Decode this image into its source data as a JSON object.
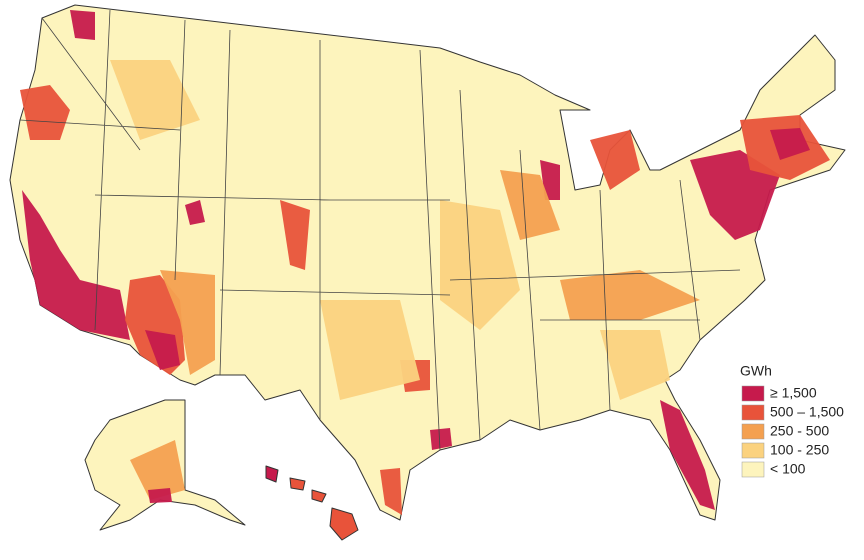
{
  "legend": {
    "title": "GWh",
    "items": [
      {
        "label": "≥ 1,500",
        "color": "#c61a4c"
      },
      {
        "label": "500 – 1,500",
        "color": "#e8533a"
      },
      {
        "label": "250 - 500",
        "color": "#f4a050"
      },
      {
        "label": "100 - 250",
        "color": "#fbd27f"
      },
      {
        "label": "< 100",
        "color": "#fdf4bd"
      }
    ]
  }
}
